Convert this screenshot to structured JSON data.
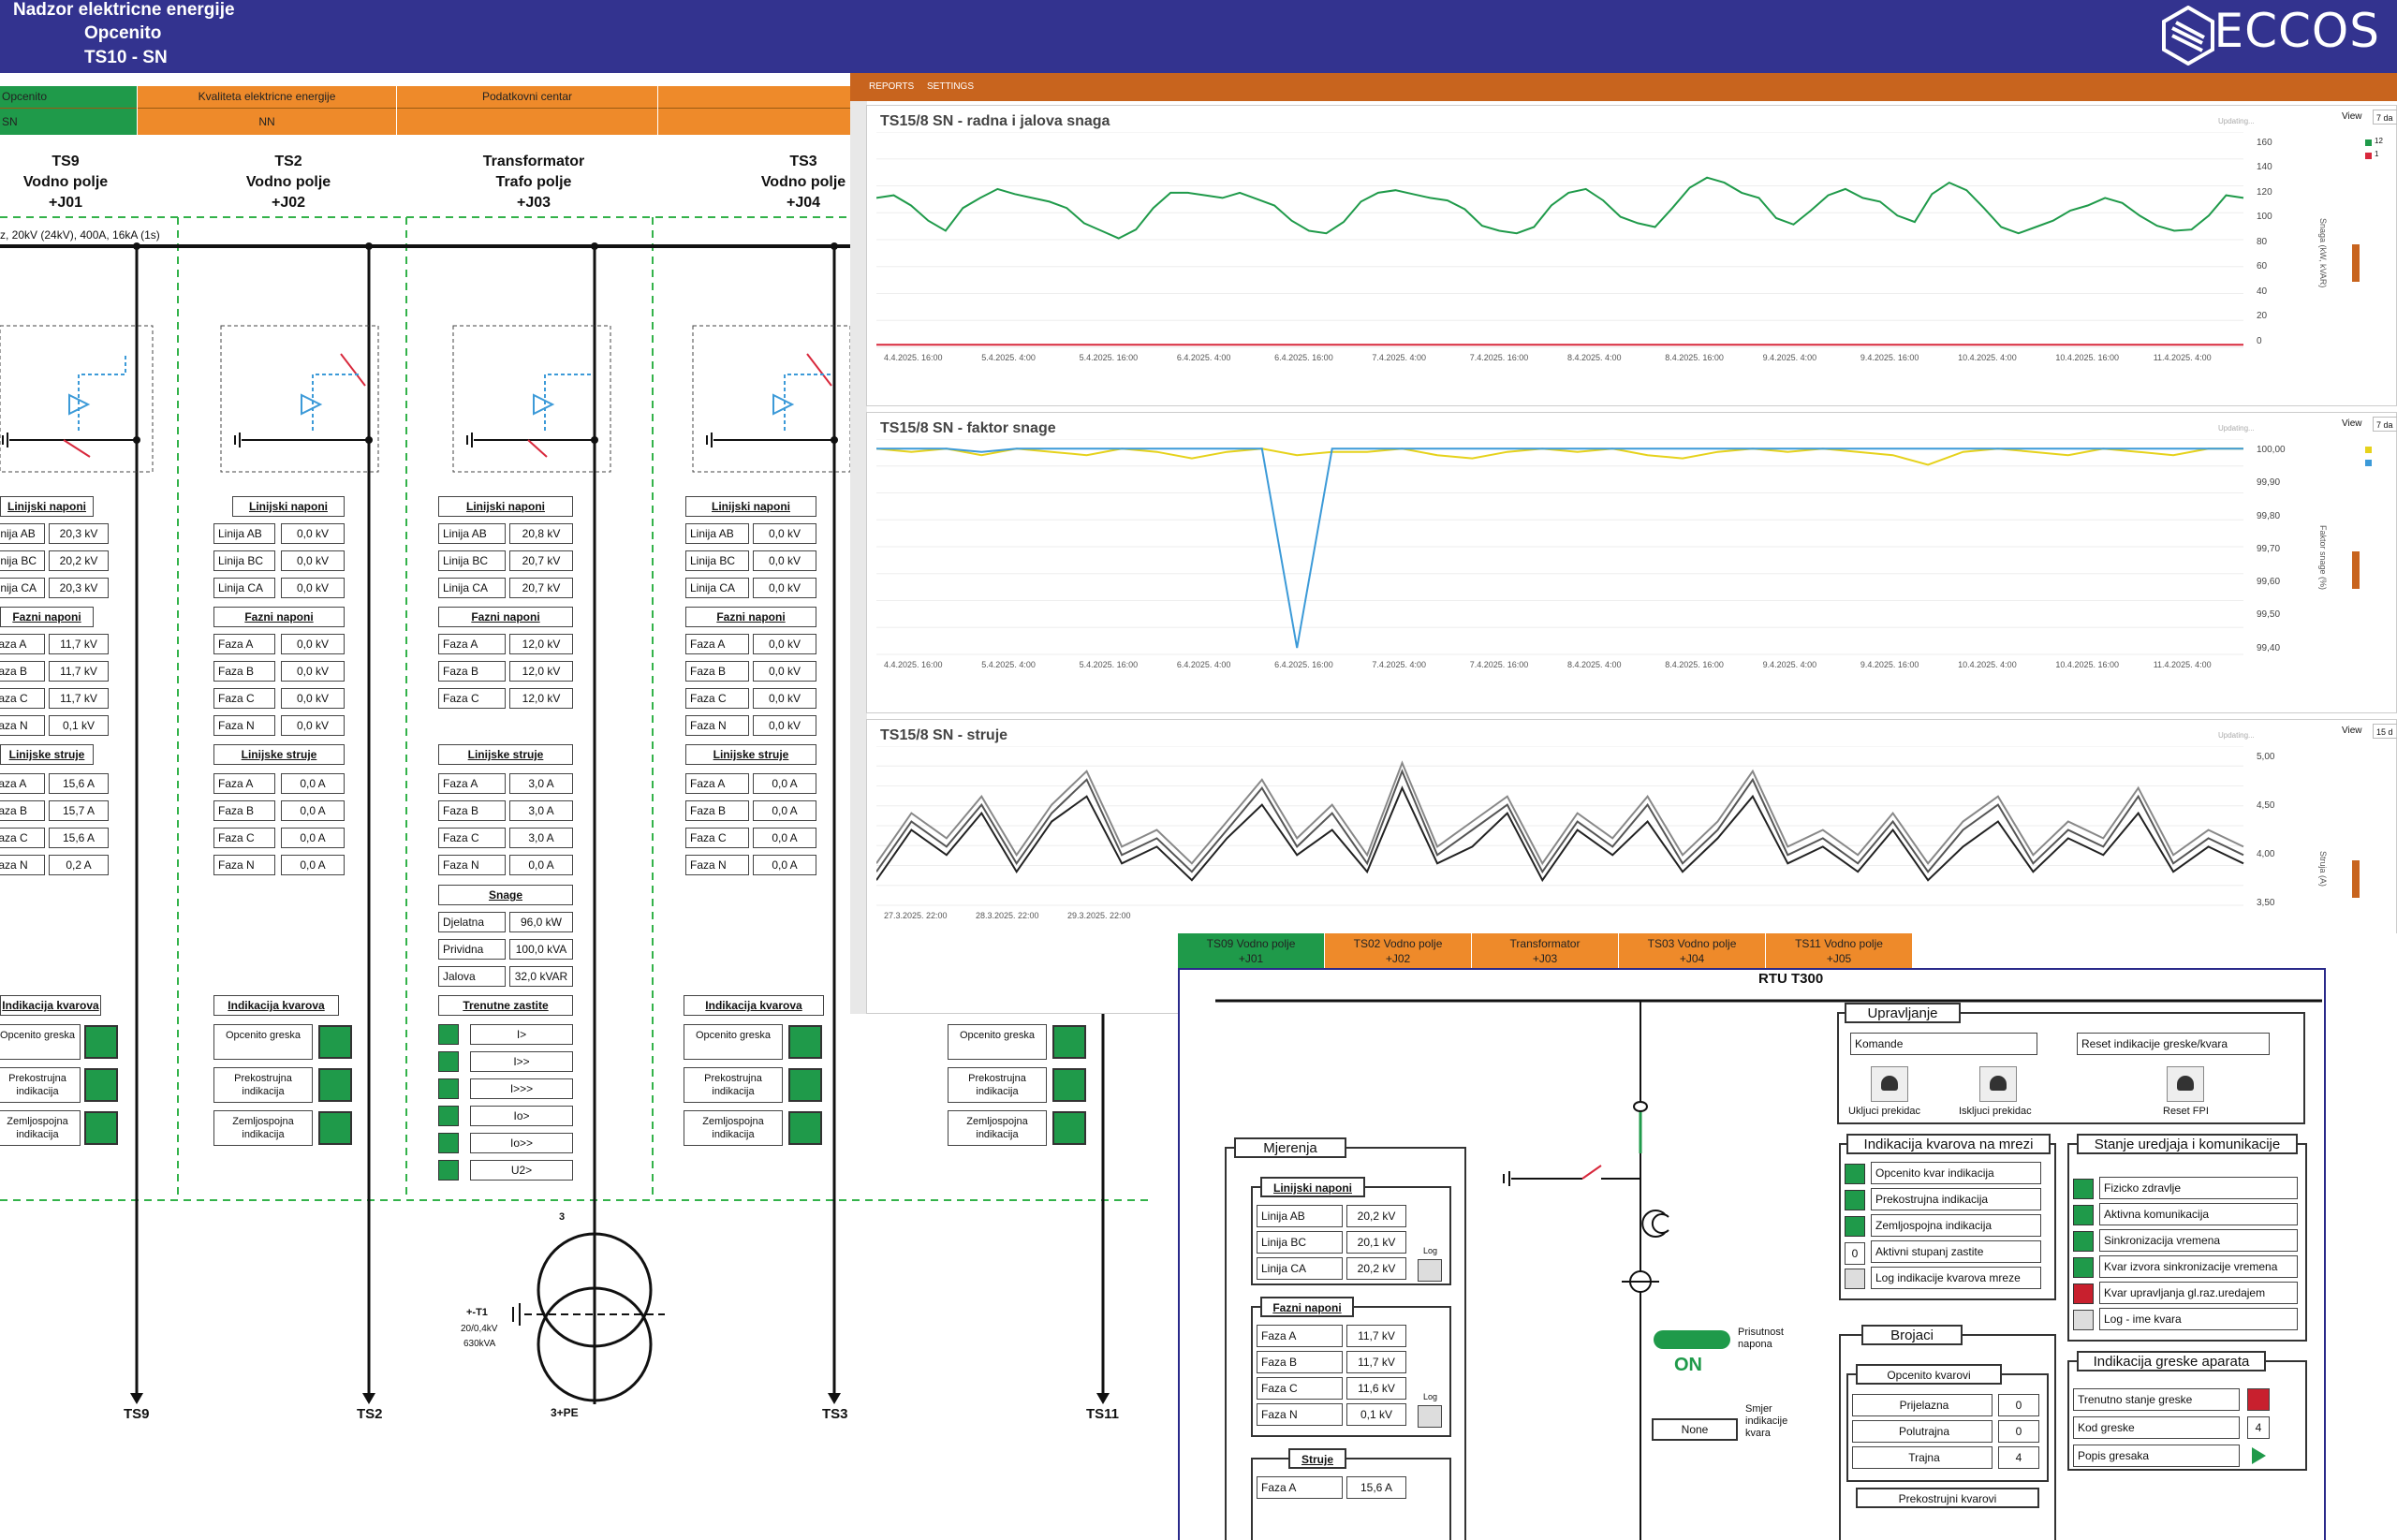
{
  "header": {
    "line1": "Nadzor elektricne energije",
    "line2": "Opcenito",
    "line3": "TS10 - SN",
    "logo": "ECCOS"
  },
  "tabs": [
    {
      "top": "Opcenito",
      "bottom": "SN",
      "color": "#1f9a4a"
    },
    {
      "top": "Kvaliteta elektricne energije",
      "bottom": "NN",
      "color": "#ee8a2a"
    },
    {
      "top": "Podatkovni centar",
      "bottom": "",
      "color": "#ee8a2a"
    },
    {
      "top": "",
      "bottom": "",
      "color": "#ee8a2a"
    }
  ],
  "chart_menu": {
    "reports": "REPORTS",
    "settings": "SETTINGS"
  },
  "bus_label": "z, 20kV (24kV), 400A, 16kA (1s)",
  "feeders": [
    {
      "name": "TS9",
      "type": "Vodno polje",
      "code": "+J01",
      "bottom": "TS9"
    },
    {
      "name": "TS2",
      "type": "Vodno polje",
      "code": "+J02",
      "bottom": "TS2"
    },
    {
      "name": "Transformator",
      "type": "Trafo polje",
      "code": "+J03",
      "bottom": "3+PE"
    },
    {
      "name": "TS3",
      "type": "Vodno polje",
      "code": "+J04",
      "bottom": "TS3"
    }
  ],
  "feeder_extra_bottom": "TS11",
  "sections": {
    "line_v": "Linijski naponi",
    "phase_v": "Fazni naponi",
    "line_i": "Linijske struje",
    "power": "Snage",
    "prot": "Trenutne zastite",
    "fault": "Indikacija kvarova"
  },
  "lbl": {
    "ab": "Linija AB",
    "bc": "Linija BC",
    "ca": "Linija CA",
    "fa": "Faza A",
    "fb": "Faza B",
    "fc": "Faza C",
    "fn": "Faza N",
    "dj": "Djelatna",
    "pr": "Prividna",
    "ja": "Jalova",
    "f1": "Opcenito greska",
    "f2": "Prekostrujna indikacija",
    "f3": "Zemljospojna indikacija"
  },
  "vals": {
    "j01": {
      "ab": "20,3 kV",
      "bc": "20,2 kV",
      "ca": "20,3 kV",
      "fa": "11,7 kV",
      "fb": "11,7 kV",
      "fc": "11,7 kV",
      "fn": "0,1 kV",
      "ia": "15,6 A",
      "ib": "15,7 A",
      "ic": "15,6 A",
      "in": "0,2 A"
    },
    "j02": {
      "ab": "0,0 kV",
      "bc": "0,0 kV",
      "ca": "0,0 kV",
      "fa": "0,0 kV",
      "fb": "0,0 kV",
      "fc": "0,0 kV",
      "fn": "0,0 kV",
      "ia": "0,0 A",
      "ib": "0,0 A",
      "ic": "0,0 A",
      "in": "0,0 A"
    },
    "j03": {
      "ab": "20,8 kV",
      "bc": "20,7 kV",
      "ca": "20,7 kV",
      "fa": "12,0 kV",
      "fb": "12,0 kV",
      "fc": "12,0 kV",
      "ia": "3,0 A",
      "ib": "3,0 A",
      "ic": "3,0 A",
      "in": "0,0 A",
      "dj": "96,0 kW",
      "pr": "100,0 kVA",
      "ja": "32,0 kVAR"
    },
    "j04": {
      "ab": "0,0 kV",
      "bc": "0,0 kV",
      "ca": "0,0 kV",
      "fa": "0,0 kV",
      "fb": "0,0 kV",
      "fc": "0,0 kV",
      "fn": "0,0 kV",
      "ia": "0,0 A",
      "ib": "0,0 A",
      "ic": "0,0 A",
      "in": "0,0 A"
    }
  },
  "protections": [
    "I>",
    "I>>",
    "I>>>",
    "Io>",
    "Io>>",
    "U2>"
  ],
  "transformer": {
    "num": "3",
    "name": "+-T1",
    "ratio": "20/0,4kV",
    "power": "630kVA"
  },
  "charts": [
    {
      "title": "TS15/8 SN - radna i jalova snaga",
      "view": "View",
      "period": "7 da",
      "updating": "Updating...",
      "ylabel": "Snaga (kW, kVAR)",
      "yticks": [
        "160",
        "140",
        "120",
        "100",
        "80",
        "60",
        "40",
        "20",
        "0"
      ],
      "legend": [
        "12",
        "1"
      ]
    },
    {
      "title": "TS15/8 SN - faktor snage",
      "view": "View",
      "period": "7 da",
      "updating": "Updating...",
      "ylabel": "Faktor snage (%)",
      "yticks": [
        "100,00",
        "99,90",
        "99,80",
        "99,70",
        "99,60",
        "99,50",
        "99,40"
      ]
    },
    {
      "title": "TS15/8 SN - struje",
      "view": "View",
      "period": "15 d",
      "updating": "Updating...",
      "ylabel": "Struja (A)",
      "yticks": [
        "5,00",
        "4,50",
        "4,00",
        "3,50"
      ]
    }
  ],
  "xticks": [
    "4.4.2025. 16:00",
    "5.4.2025. 4:00",
    "5.4.2025. 16:00",
    "6.4.2025. 4:00",
    "6.4.2025. 16:00",
    "7.4.2025. 4:00",
    "7.4.2025. 16:00",
    "8.4.2025. 4:00",
    "8.4.2025. 16:00",
    "9.4.2025. 4:00",
    "9.4.2025. 16:00",
    "10.4.2025. 4:00",
    "10.4.2025. 16:00",
    "11.4.2025. 4:00"
  ],
  "xticks3": [
    "27.3.2025. 22:00",
    "28.3.2025. 22:00",
    "29.3.2025. 22:00"
  ],
  "chart_data": [
    {
      "type": "line",
      "title": "TS15/8 SN - radna i jalova snaga",
      "ylim": [
        0,
        170
      ],
      "series": [
        {
          "name": "12",
          "color": "#1f9a4a",
          "values": [
            118,
            120,
            112,
            100,
            92,
            110,
            118,
            125,
            121,
            118,
            115,
            110,
            98,
            92,
            86,
            93,
            110,
            122,
            122,
            120,
            118,
            122,
            117,
            112,
            100,
            92,
            90,
            99,
            115,
            122,
            124,
            121,
            118,
            116,
            109,
            96,
            92,
            90,
            95,
            112,
            122,
            125,
            116,
            103,
            98,
            95,
            110,
            126,
            134,
            130,
            122,
            118,
            102,
            97,
            108,
            120,
            125,
            118,
            115,
            104,
            99,
            121,
            130,
            124,
            110,
            95,
            90,
            95,
            100,
            108,
            112,
            118,
            114,
            104,
            96,
            92,
            93,
            104,
            120,
            118
          ]
        },
        {
          "name": "1",
          "color": "#d8283c",
          "values": [
            2,
            2,
            2,
            2,
            2,
            2,
            2,
            2,
            2,
            2,
            2,
            2,
            2,
            2,
            2,
            2,
            2,
            2,
            2,
            2,
            2,
            2,
            2,
            2,
            2,
            2,
            2,
            2,
            2,
            2,
            2,
            2,
            2,
            2,
            2,
            2,
            2,
            2,
            2,
            2,
            2,
            2,
            2,
            2,
            2,
            2,
            2,
            2,
            2,
            2,
            2,
            2,
            2,
            2,
            2,
            2,
            2,
            2,
            2,
            2,
            2,
            2,
            2,
            2,
            2,
            2,
            2,
            2,
            2,
            2,
            2,
            2,
            2,
            2,
            2,
            2,
            2,
            2,
            2,
            2
          ]
        }
      ]
    },
    {
      "type": "line",
      "title": "TS15/8 SN - faktor snage",
      "ylim": [
        99.35,
        100.02
      ],
      "series": [
        {
          "name": "",
          "color": "#e6d21c",
          "values": [
            99.99,
            99.98,
            99.99,
            99.97,
            99.99,
            99.98,
            99.97,
            99.99,
            99.98,
            99.96,
            99.98,
            99.99,
            99.97,
            99.98,
            99.98,
            99.99,
            99.97,
            99.96,
            99.98,
            99.99,
            99.98,
            99.99,
            99.97,
            99.96,
            99.98,
            99.99,
            99.98,
            99.99,
            99.98,
            99.97,
            99.94,
            99.98,
            99.99,
            99.98,
            99.97,
            99.99,
            99.98,
            99.97,
            99.99,
            99.99
          ]
        },
        {
          "name": "",
          "color": "#3c9ad8",
          "values": [
            99.99,
            99.99,
            99.99,
            99.98,
            99.99,
            99.99,
            99.99,
            99.99,
            99.99,
            99.99,
            99.99,
            99.99,
            99.37,
            99.99,
            99.99,
            99.99,
            99.99,
            99.99,
            99.99,
            99.99,
            99.99,
            99.99,
            99.99,
            99.99,
            99.99,
            99.99,
            99.99,
            99.99,
            99.99,
            99.99,
            99.99,
            99.99,
            99.99,
            99.99,
            99.99,
            99.99,
            99.99,
            99.99,
            99.99,
            99.99
          ]
        }
      ]
    },
    {
      "type": "line",
      "title": "TS15/8 SN - struje",
      "ylim": [
        3.3,
        5.2
      ],
      "series": [
        {
          "name": "",
          "color": "#222222",
          "values": [
            3.6,
            4.2,
            3.9,
            4.4,
            3.7,
            4.3,
            4.6,
            3.8,
            4.0,
            3.6,
            4.1,
            4.5,
            3.9,
            4.2,
            3.7,
            4.7,
            3.8,
            4.0,
            4.4,
            3.6,
            4.2,
            3.9,
            4.3,
            3.7,
            4.1,
            4.6,
            3.8,
            4.0,
            3.7,
            4.2,
            3.6,
            4.0,
            4.3,
            3.7,
            4.1,
            3.9,
            4.4,
            3.7,
            4.0,
            3.8
          ]
        },
        {
          "name": "",
          "color": "#555555",
          "values": [
            3.7,
            4.3,
            4.0,
            4.5,
            3.8,
            4.4,
            4.8,
            3.9,
            4.1,
            3.7,
            4.2,
            4.7,
            4.0,
            4.4,
            3.8,
            4.9,
            3.9,
            4.2,
            4.5,
            3.7,
            4.3,
            4.0,
            4.5,
            3.8,
            4.2,
            4.8,
            3.9,
            4.1,
            3.8,
            4.3,
            3.7,
            4.2,
            4.5,
            3.8,
            4.2,
            4.0,
            4.6,
            3.8,
            4.1,
            3.9
          ]
        },
        {
          "name": "",
          "color": "#888888",
          "values": [
            3.8,
            4.4,
            4.1,
            4.6,
            3.9,
            4.5,
            4.9,
            4.0,
            4.2,
            3.8,
            4.3,
            4.8,
            4.1,
            4.5,
            3.9,
            5.0,
            4.0,
            4.3,
            4.6,
            3.8,
            4.4,
            4.1,
            4.6,
            3.9,
            4.3,
            4.9,
            4.0,
            4.2,
            3.9,
            4.4,
            3.8,
            4.3,
            4.6,
            3.9,
            4.3,
            4.1,
            4.7,
            3.9,
            4.2,
            4.0
          ]
        }
      ]
    }
  ],
  "extra_fault": {
    "f1": "Opcenito greska",
    "f2": "Prekostrujna indikacija",
    "f3": "Zemljospojna indikacija"
  },
  "rtu": {
    "tabs": [
      {
        "l1": "TS09 Vodno polje",
        "l2": "+J01",
        "color": "#1f9a4a"
      },
      {
        "l1": "TS02 Vodno polje",
        "l2": "+J02",
        "color": "#ee8a2a"
      },
      {
        "l1": "Transformator",
        "l2": "+J03",
        "color": "#ee8a2a"
      },
      {
        "l1": "TS03 Vodno polje",
        "l2": "+J04",
        "color": "#ee8a2a"
      },
      {
        "l1": "TS11 Vodno polje",
        "l2": "+J05",
        "color": "#ee8a2a"
      }
    ],
    "title": "RTU T300",
    "upravljanje": "Upravljanje",
    "komande": "Komande",
    "reset_ind": "Reset indikacije greske/kvara",
    "btn_on": "Ukljuci prekidac",
    "btn_off": "Iskljuci prekidac",
    "btn_reset": "Reset FPI",
    "mjerenja": "Mjerenja",
    "lin_nap": "Linijski naponi",
    "faz_nap": "Fazni naponi",
    "struje": "Struje",
    "log": "Log",
    "m_line": [
      {
        "l": "Linija AB",
        "v": "20,2 kV"
      },
      {
        "l": "Linija BC",
        "v": "20,1 kV"
      },
      {
        "l": "Linija CA",
        "v": "20,2 kV"
      }
    ],
    "m_phase": [
      {
        "l": "Faza A",
        "v": "11,7 kV"
      },
      {
        "l": "Faza B",
        "v": "11,7 kV"
      },
      {
        "l": "Faza C",
        "v": "11,6 kV"
      },
      {
        "l": "Faza N",
        "v": "0,1 kV"
      }
    ],
    "m_cur": [
      {
        "l": "Faza A",
        "v": "15,6 A"
      }
    ],
    "ind_title": "Indikacija kvarova na mrezi",
    "ind": [
      "Opcenito kvar indikacija",
      "Prekostrujna indikacija",
      "Zemljospojna indikacija",
      "Aktivni stupanj zastite",
      "Log indikacije kvarova mreze"
    ],
    "ind_val": "0",
    "stanje_title": "Stanje uredjaja i komunikacije",
    "stanje": [
      "Fizicko zdravlje",
      "Aktivna komunikacija",
      "Sinkronizacija vremena",
      "Kvar izvora sinkronizacije vremena",
      "Kvar upravljanja gl.raz.uredajem",
      "Log - ime kvara"
    ],
    "brojaci": "Brojaci",
    "opc_kvarovi": "Opcenito kvarovi",
    "counters": [
      {
        "l": "Prijelazna",
        "v": "0"
      },
      {
        "l": "Polutrajna",
        "v": "0"
      },
      {
        "l": "Trajna",
        "v": "4"
      }
    ],
    "prekostrujni": "Prekostrujni kvarovi",
    "greske_title": "Indikacija greske aparata",
    "greske": [
      {
        "l": "Trenutno stanje greske",
        "v": ""
      },
      {
        "l": "Kod greske",
        "v": "4"
      },
      {
        "l": "Popis gresaka",
        "v": ""
      }
    ],
    "prisutnost": "Prisutnost napona",
    "on": "ON",
    "none": "None",
    "smjer": "Smjer indikacije kvara"
  }
}
